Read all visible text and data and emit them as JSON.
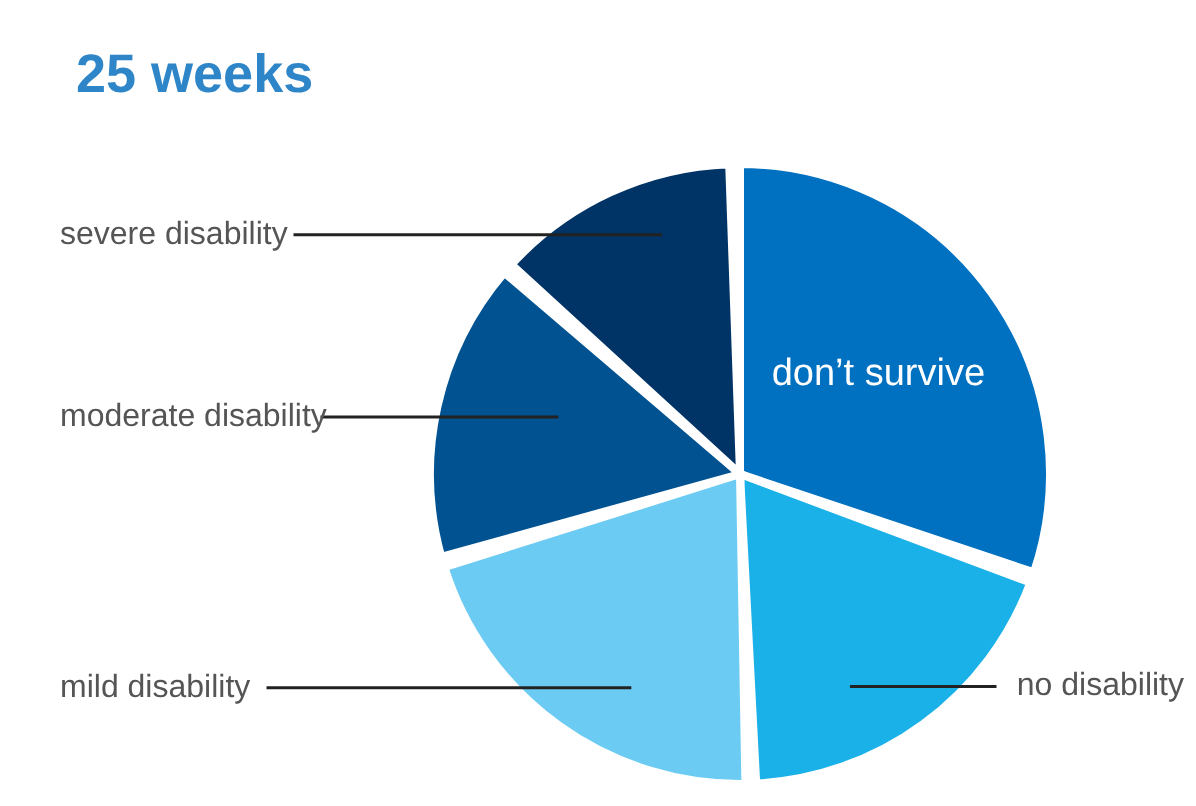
{
  "chart_data": {
    "type": "pie",
    "title": "25 weeks",
    "categories": [
      "don’t survive",
      "no disability",
      "mild disability",
      "moderate disability",
      "severe disability"
    ],
    "values": [
      31,
      19,
      21,
      16,
      13
    ],
    "colors": [
      "#0070c0",
      "#1ab0e8",
      "#6ccbf2",
      "#005290",
      "#003366"
    ],
    "legend": false
  }
}
